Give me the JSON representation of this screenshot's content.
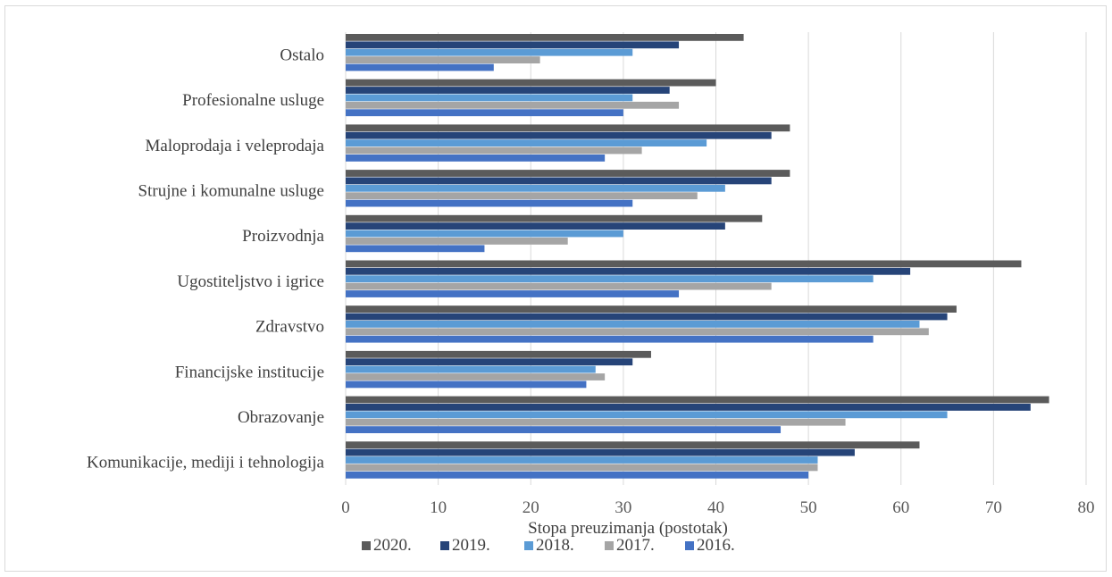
{
  "chart_data": {
    "type": "bar",
    "orientation": "horizontal",
    "categories": [
      "Ostalo",
      "Profesionalne usluge",
      "Maloprodaja i veleprodaja",
      "Strujne i komunalne usluge",
      "Proizvodnja",
      "Ugostiteljstvo i igrice",
      "Zdravstvo",
      "Financijske institucije",
      "Obrazovanje",
      "Komunikacije, mediji i tehnologija"
    ],
    "series": [
      {
        "name": "2020.",
        "color": "#5b5b5b",
        "values": [
          43,
          40,
          48,
          48,
          45,
          73,
          66,
          33,
          76,
          62
        ]
      },
      {
        "name": "2019.",
        "color": "#264478",
        "values": [
          36,
          35,
          46,
          46,
          41,
          61,
          65,
          31,
          74,
          55
        ]
      },
      {
        "name": "2018.",
        "color": "#5b9bd5",
        "values": [
          31,
          31,
          39,
          41,
          30,
          57,
          62,
          27,
          65,
          51
        ]
      },
      {
        "name": "2017.",
        "color": "#a5a5a5",
        "values": [
          21,
          36,
          32,
          38,
          24,
          46,
          63,
          28,
          54,
          51
        ]
      },
      {
        "name": "2016.",
        "color": "#4472c4",
        "values": [
          16,
          30,
          28,
          31,
          15,
          36,
          57,
          26,
          47,
          50
        ]
      }
    ],
    "xlabel": "Stopa preuzimanja (postotak)",
    "ylabel": "",
    "xlim": [
      0,
      80
    ],
    "xticks": [
      "0",
      "10",
      "20",
      "30",
      "40",
      "50",
      "60",
      "70",
      "80"
    ],
    "grid": true,
    "legend_position": "bottom"
  }
}
